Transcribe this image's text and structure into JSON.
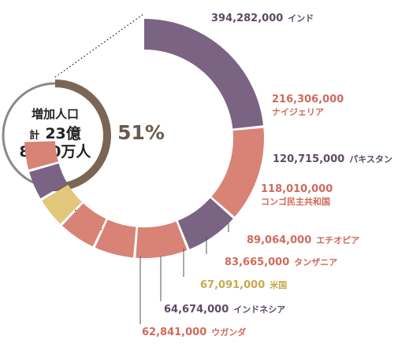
{
  "colors": {
    "purple": "#7b6483",
    "salmon": "#d98276",
    "gold": "#e2c67c",
    "ring_dark": "#7b6554",
    "ring_light": "#8a8a8a",
    "percent": "#6b5a4c",
    "text_dark": "#222222"
  },
  "center": {
    "label": "増加人口",
    "total_prefix": "計",
    "total_main": "23億",
    "total_line2": "8000万人",
    "percent": "51%",
    "percent_value": 51
  },
  "chart_data": {
    "type": "donut",
    "series": [
      {
        "value": 394282000,
        "value_label": "394,282,000",
        "country": "インド",
        "color": "#7b6483"
      },
      {
        "value": 216306000,
        "value_label": "216,306,000",
        "country": "ナイジェリア",
        "color": "#d98276"
      },
      {
        "value": 120715000,
        "value_label": "120,715,000",
        "country": "パキスタン",
        "color": "#7b6483"
      },
      {
        "value": 118010000,
        "value_label": "118,010,000",
        "country": "コンゴ民主共和国",
        "color": "#d98276"
      },
      {
        "value": 89064000,
        "value_label": "89,064,000",
        "country": "エチオピア",
        "color": "#d98276"
      },
      {
        "value": 83665000,
        "value_label": "83,665,000",
        "country": "タンザニア",
        "color": "#d98276"
      },
      {
        "value": 67091000,
        "value_label": "67,091,000",
        "country": "米国",
        "color": "#e2c67c"
      },
      {
        "value": 64674000,
        "value_label": "64,674,000",
        "country": "インドネシア",
        "color": "#7b6483"
      },
      {
        "value": 62841000,
        "value_label": "62,841,000",
        "country": "ウガンダ",
        "color": "#d98276"
      }
    ]
  }
}
